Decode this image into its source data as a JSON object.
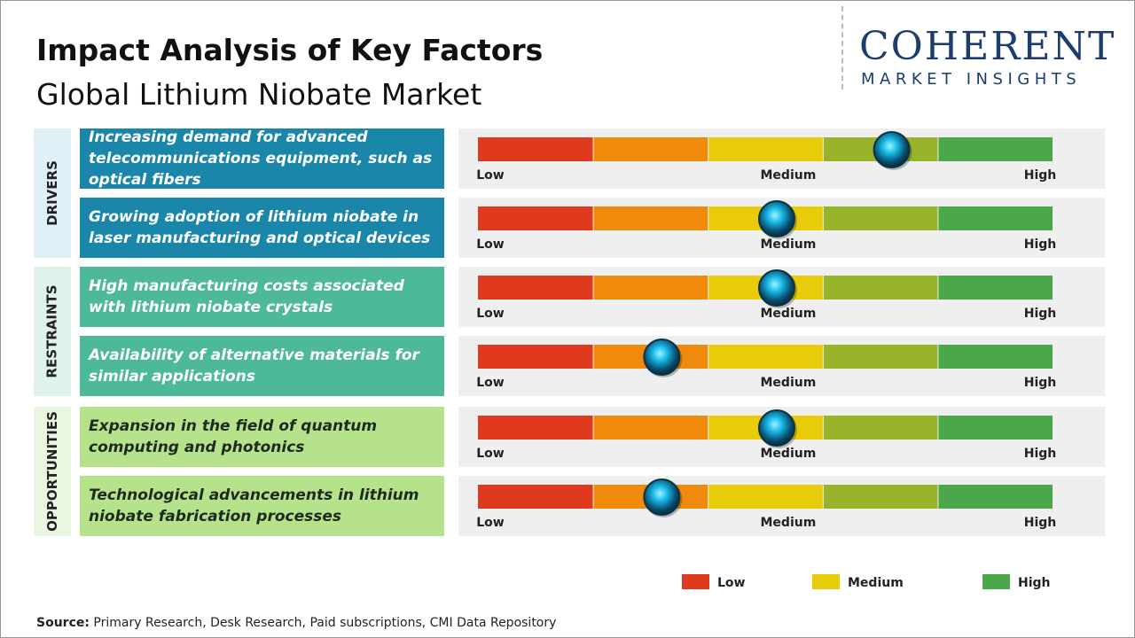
{
  "header": {
    "title": "Impact Analysis of Key Factors",
    "subtitle": "Global Lithium Niobate Market",
    "logo": {
      "name": "COHERENT",
      "tagline": "MARKET INSIGHTS"
    }
  },
  "scale": {
    "labels": [
      "Low",
      "Medium",
      "High"
    ],
    "xlim": [
      0,
      5
    ],
    "segment_colors": [
      "#e03a1e",
      "#ef8a0c",
      "#e8cc0a",
      "#97b42a",
      "#4aa84a"
    ]
  },
  "groups": [
    {
      "label": "DRIVERS",
      "color": "#1a87aa",
      "label_bg": "#dff1f7",
      "text_color": "#ffffff",
      "factors": [
        {
          "text": "Increasing demand for advanced telecommunications equipment, such as optical fibers",
          "impact": 3.6
        },
        {
          "text": "Growing adoption of lithium niobate in laser manufacturing and optical devices",
          "impact": 2.6
        }
      ]
    },
    {
      "label": "RESTRAINTS",
      "color": "#4db89a",
      "label_bg": "#dff2ec",
      "text_color": "#ffffff",
      "factors": [
        {
          "text": "High manufacturing costs associated with lithium niobate crystals",
          "impact": 2.6
        },
        {
          "text": "Availability of alternative materials for similar applications",
          "impact": 1.6
        }
      ]
    },
    {
      "label": "OPPORTUNITIES",
      "color": "#b5e28a",
      "label_bg": "#eaf7e0",
      "text_color": "#1e2a1e",
      "factors": [
        {
          "text": "Expansion in the field of quantum computing and photonics",
          "impact": 2.6
        },
        {
          "text": "Technological advancements in lithium niobate fabrication processes",
          "impact": 1.6
        }
      ]
    }
  ],
  "legend": [
    {
      "name": "Low",
      "color": "#e03a1e"
    },
    {
      "name": "Medium",
      "color": "#e8cc0a"
    },
    {
      "name": "High",
      "color": "#4aa84a"
    }
  ],
  "source": {
    "label": "Source:",
    "text": "Primary Research, Desk Research, Paid subscriptions, CMI Data Repository"
  }
}
